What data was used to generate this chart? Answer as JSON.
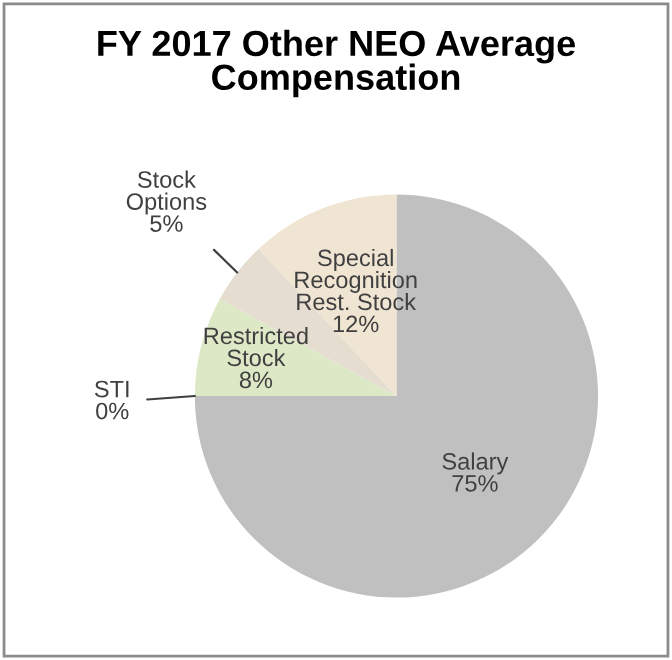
{
  "chart_data": {
    "type": "pie",
    "title": "FY 2017 Other NEO Average\nCompensation",
    "categories": [
      "Salary",
      "STI",
      "Restricted\nStock",
      "Stock\nOptions",
      "Special\nRecognition\nRest. Stock"
    ],
    "values": [
      75,
      0,
      8,
      5,
      12
    ],
    "colors": [
      "#c0c0c0",
      "#dbe8c8",
      "#dde8c6",
      "#e4ddd0",
      "#efe5d2"
    ],
    "value_labels": [
      "75%",
      "0%",
      "8%",
      "5%",
      "12%"
    ]
  }
}
